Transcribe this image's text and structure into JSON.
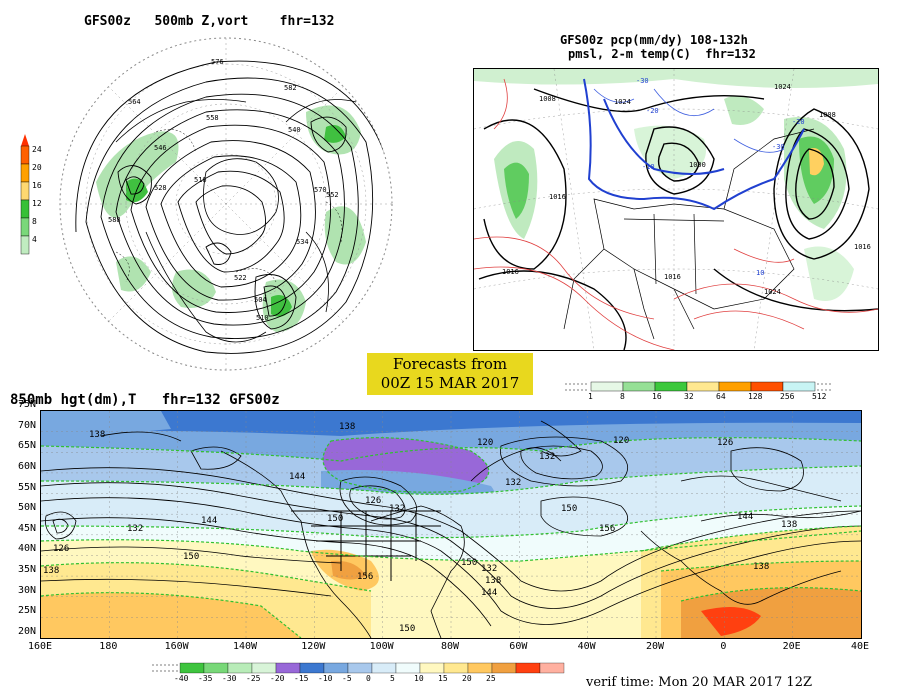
{
  "top_left": {
    "title": "GFS00z   500mb Z,vort    fhr=132",
    "colorbar_ticks": [
      "24",
      "20",
      "16",
      "12",
      "8",
      "4"
    ],
    "colorbar_colors": [
      "#ff6000",
      "#ffa000",
      "#ffd870",
      "#36c036",
      "#7ad87a",
      "#c0ecc0"
    ],
    "contour_labels": [
      "576",
      "582",
      "564",
      "558",
      "546",
      "540",
      "528",
      "516",
      "552",
      "534",
      "522",
      "510",
      "570",
      "588",
      "504"
    ]
  },
  "top_right": {
    "title_line1": "GFS00z pcp(mm/dy) 108-132h",
    "title_line2": "pmsl, 2-m temp(C)  fhr=132",
    "colorbar_ticks": [
      "1",
      "8",
      "16",
      "32",
      "64",
      "128",
      "256",
      "512"
    ],
    "colorbar_colors": [
      "#e6f8e6",
      "#96e096",
      "#3cc83c",
      "#ffe890",
      "#ffa000",
      "#ff5000",
      "#c8f4f4"
    ],
    "pressure_labels": [
      "1016",
      "1024",
      "1008",
      "1016",
      "1024",
      "1000",
      "1008",
      "1016",
      "1024",
      "1016"
    ],
    "temp_labels": [
      "-30",
      "-20",
      "-10",
      "10",
      "-30",
      "-20"
    ]
  },
  "banner": {
    "line1": "Forecasts from",
    "line2": "00Z 15 MAR 2017"
  },
  "bottom": {
    "title": "850mb hgt(dm),T   fhr=132 GFS00z",
    "lat_labels": [
      "75N",
      "70N",
      "65N",
      "60N",
      "55N",
      "50N",
      "45N",
      "40N",
      "35N",
      "30N",
      "25N",
      "20N"
    ],
    "lon_labels": [
      "160E",
      "180",
      "160W",
      "140W",
      "120W",
      "100W",
      "80W",
      "60W",
      "40W",
      "20W",
      "0",
      "20E",
      "40E"
    ],
    "height_labels": [
      "138",
      "138",
      "120",
      "132",
      "120",
      "126",
      "144",
      "132",
      "126",
      "132",
      "150",
      "156",
      "144",
      "138",
      "126",
      "132",
      "138",
      "150",
      "132",
      "138",
      "144",
      "150",
      "150",
      "156",
      "138",
      "144",
      "150"
    ],
    "colorbar_ticks": [
      "-40",
      "-35",
      "-30",
      "-25",
      "-20",
      "-15",
      "-10",
      "-5",
      "0",
      "5",
      "10",
      "15",
      "20",
      "25"
    ],
    "colorbar_colors": [
      "#3ec43e",
      "#78d878",
      "#b8ecb8",
      "#d8f4d8",
      "#9868d8",
      "#3c78d0",
      "#78a8e0",
      "#a8c8ec",
      "#d8ecf8",
      "#f0fcfc",
      "#fff8c0",
      "#ffe890",
      "#ffc860",
      "#f0a040",
      "#ff4010",
      "#ffb0a0"
    ]
  },
  "verif": "verif time: Mon 20 MAR 2017 12Z"
}
